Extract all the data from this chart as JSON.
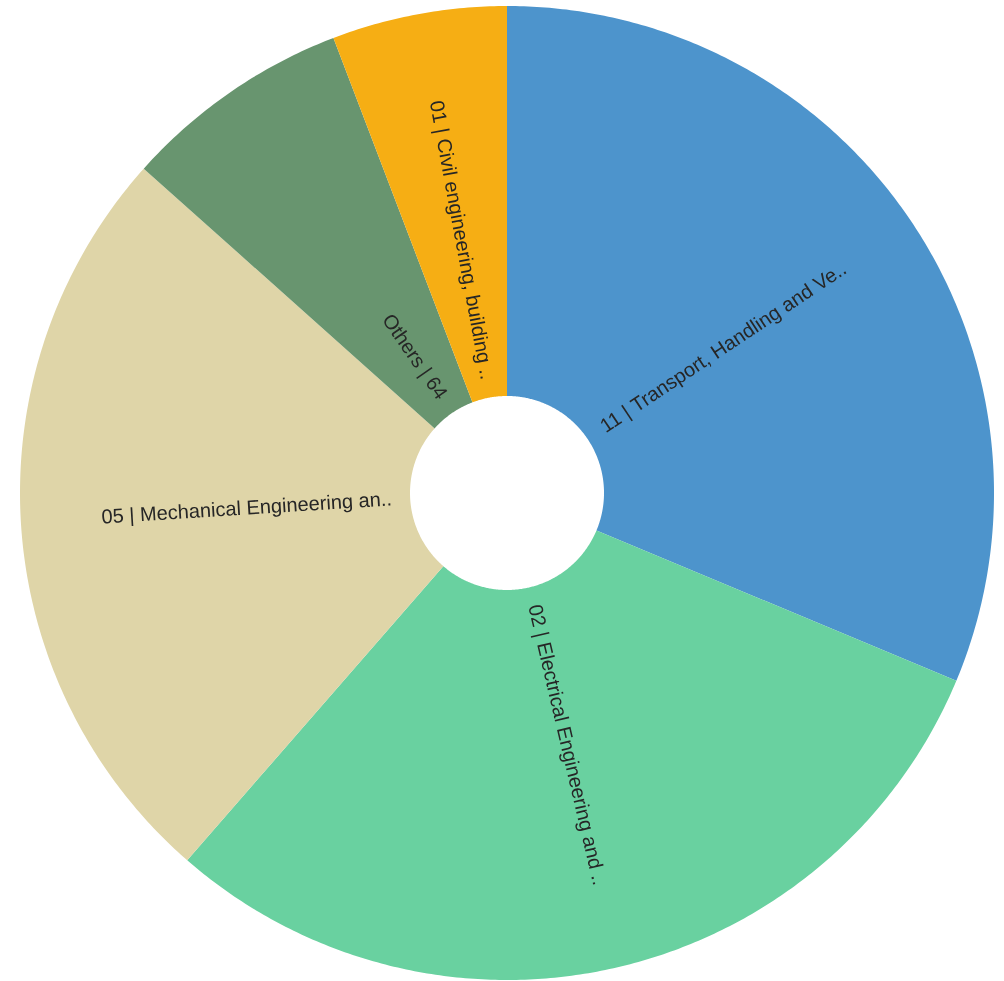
{
  "chart_data": {
    "type": "donut",
    "categories": [
      "11 | Transport, Handling and Ve..",
      "02 | Electrical Engineering and ..",
      "05 | Mechanical Engineering an..",
      "Others | 64",
      "01 | Civil engineering, building .."
    ],
    "values": [
      31.3,
      30.1,
      25.2,
      7.6,
      5.8
    ],
    "colors": [
      "#4d94cc",
      "#69d1a0",
      "#dfd5a8",
      "#68956f",
      "#f6ae14"
    ]
  }
}
